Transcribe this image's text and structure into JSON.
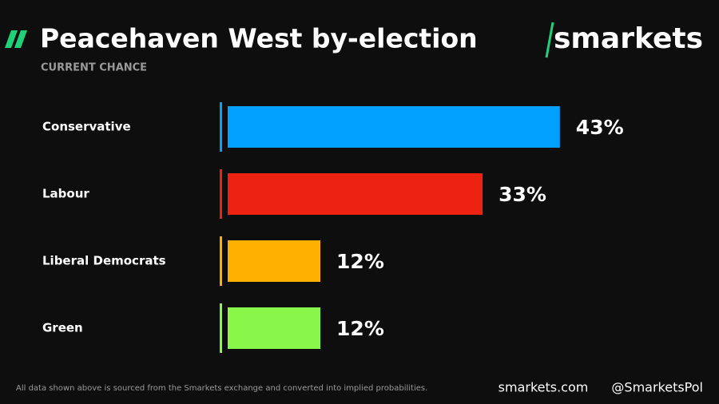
{
  "chart_data": {
    "type": "bar",
    "title": "Peacehaven West by-election",
    "subtitle": "CURRENT CHANCE",
    "logo": "smarkets",
    "categories": [
      "Conservative",
      "Labour",
      "Liberal Democrats",
      "Green"
    ],
    "values": [
      43,
      33,
      12,
      12
    ],
    "value_labels": [
      "43%",
      "33%",
      "12%",
      "12%"
    ],
    "colors": [
      "#00a0ff",
      "#ee2211",
      "#ffb000",
      "#88f74a"
    ],
    "footnote": "All data shown above is sourced from the Smarkets exchange and converted into implied probabilities.",
    "website": "smarkets.com",
    "handle": "@SmarketsPol"
  }
}
